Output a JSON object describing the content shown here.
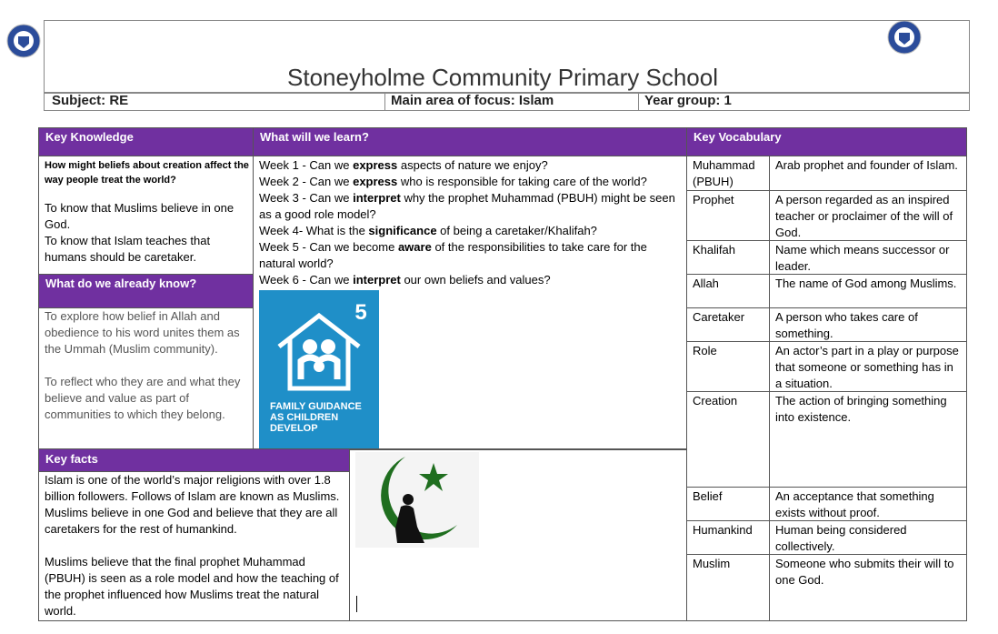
{
  "header": {
    "title": "Stoneyholme Community Primary School",
    "subject": "Subject: RE",
    "focus": "Main area of focus: Islam",
    "year_group": "Year group: 1"
  },
  "key_knowledge": {
    "heading": "Key Knowledge",
    "question": "How might beliefs about creation affect the way people treat the world?",
    "points": [
      "To know that Muslims believe in one God.",
      "To know that Islam teaches that humans should be caretaker."
    ]
  },
  "already_know": {
    "heading": "What do we already know?",
    "paragraphs": [
      "To explore how belief in Allah and obedience to his word unites them as the Ummah (Muslim community).",
      "To reflect who they are and what they believe and value as part of communities to which they belong."
    ]
  },
  "learn": {
    "heading": "What will we learn?",
    "weeks": [
      [
        "Week 1 - Can we ",
        "express",
        " aspects of nature we enjoy?"
      ],
      [
        "Week 2 - Can we ",
        "express",
        " who is responsible for taking care of the world?"
      ],
      [
        "Week 3 - Can we ",
        "interpret",
        " why the prophet Muhammad (PBUH) might be seen as a good role model?"
      ],
      [
        "Week 4- What is the ",
        "significance",
        " of being a caretaker/Khalifah?"
      ],
      [
        "Week 5 - Can we become ",
        "aware",
        " of the responsibilities to take care for the natural world?"
      ],
      [
        "Week 6 - Can we ",
        "interpret",
        " our own beliefs and values?"
      ]
    ]
  },
  "sdg_icon": {
    "number": "5",
    "label": "FAMILY GUIDANCE AS CHILDREN DEVELOP"
  },
  "key_facts": {
    "heading": "Key facts",
    "paragraphs": [
      "Islam is one of the world’s major religions with over 1.8 billion followers. Follows of Islam are known as Muslims. Muslims believe in one God and believe that they are all caretakers for the rest of humankind.",
      "Muslims believe that the final prophet Muhammad (PBUH) is seen as a role model and how the teaching of the prophet influenced how Muslims treat the natural world."
    ]
  },
  "vocabulary": {
    "heading": "Key Vocabulary",
    "rows": [
      [
        "Muhammad (PBUH)",
        "Arab prophet and founder of Islam."
      ],
      [
        "Prophet",
        "A person regarded as an inspired teacher or proclaimer of the will of God."
      ],
      [
        "Khalifah",
        "Name which means successor or leader."
      ],
      [
        "Allah",
        "The name of God among Muslims."
      ],
      [
        "Caretaker",
        "A person who takes care of something."
      ],
      [
        "Role",
        "An actor’s part in a play or purpose that someone or something has in a situation."
      ],
      [
        "Creation",
        "The action of bringing something into existence."
      ],
      [
        "Belief",
        "An acceptance that something exists without proof."
      ],
      [
        "Humankind",
        "Human being considered collectively."
      ],
      [
        "Muslim",
        "Someone who submits their will to one God."
      ]
    ]
  }
}
